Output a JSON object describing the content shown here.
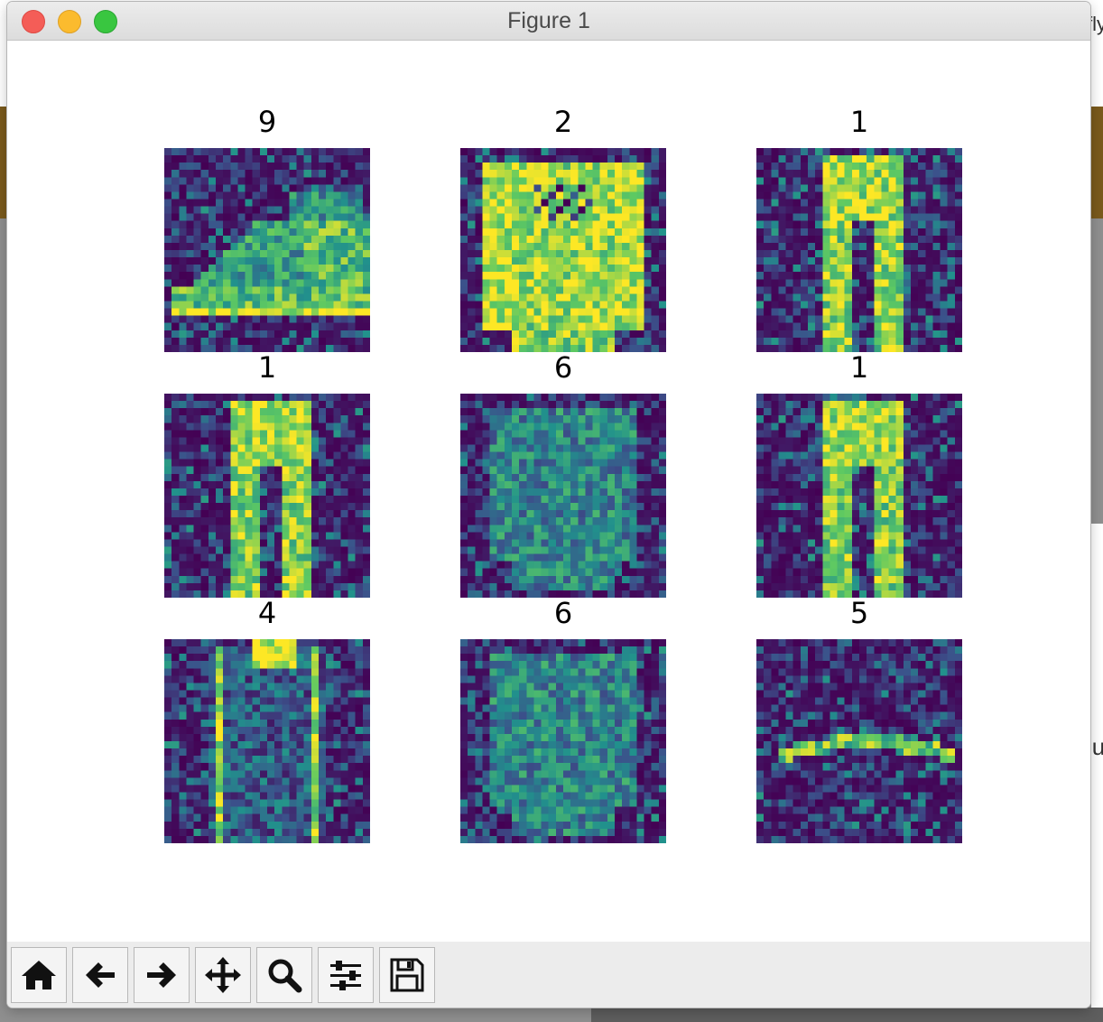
{
  "window": {
    "title": "Figure 1"
  },
  "background": {
    "top_right_text": "fly",
    "mid_right_text": "lu"
  },
  "figure": {
    "colormap": "viridis",
    "panels": [
      {
        "label": "9",
        "depicts": "sneaker"
      },
      {
        "label": "2",
        "depicts": "pullover"
      },
      {
        "label": "1",
        "depicts": "trouser"
      },
      {
        "label": "1",
        "depicts": "trouser"
      },
      {
        "label": "6",
        "depicts": "shirt"
      },
      {
        "label": "1",
        "depicts": "trouser"
      },
      {
        "label": "4",
        "depicts": "coat"
      },
      {
        "label": "6",
        "depicts": "shirt"
      },
      {
        "label": "5",
        "depicts": "sandal"
      }
    ]
  },
  "toolbar": {
    "buttons": [
      {
        "name": "home-button",
        "icon": "home-icon"
      },
      {
        "name": "back-button",
        "icon": "arrow-left-icon"
      },
      {
        "name": "forward-button",
        "icon": "arrow-right-icon"
      },
      {
        "name": "pan-button",
        "icon": "move-icon"
      },
      {
        "name": "zoom-button",
        "icon": "magnifier-icon"
      },
      {
        "name": "configure-subplots-button",
        "icon": "sliders-icon"
      },
      {
        "name": "save-button",
        "icon": "floppy-disk-icon"
      }
    ]
  }
}
